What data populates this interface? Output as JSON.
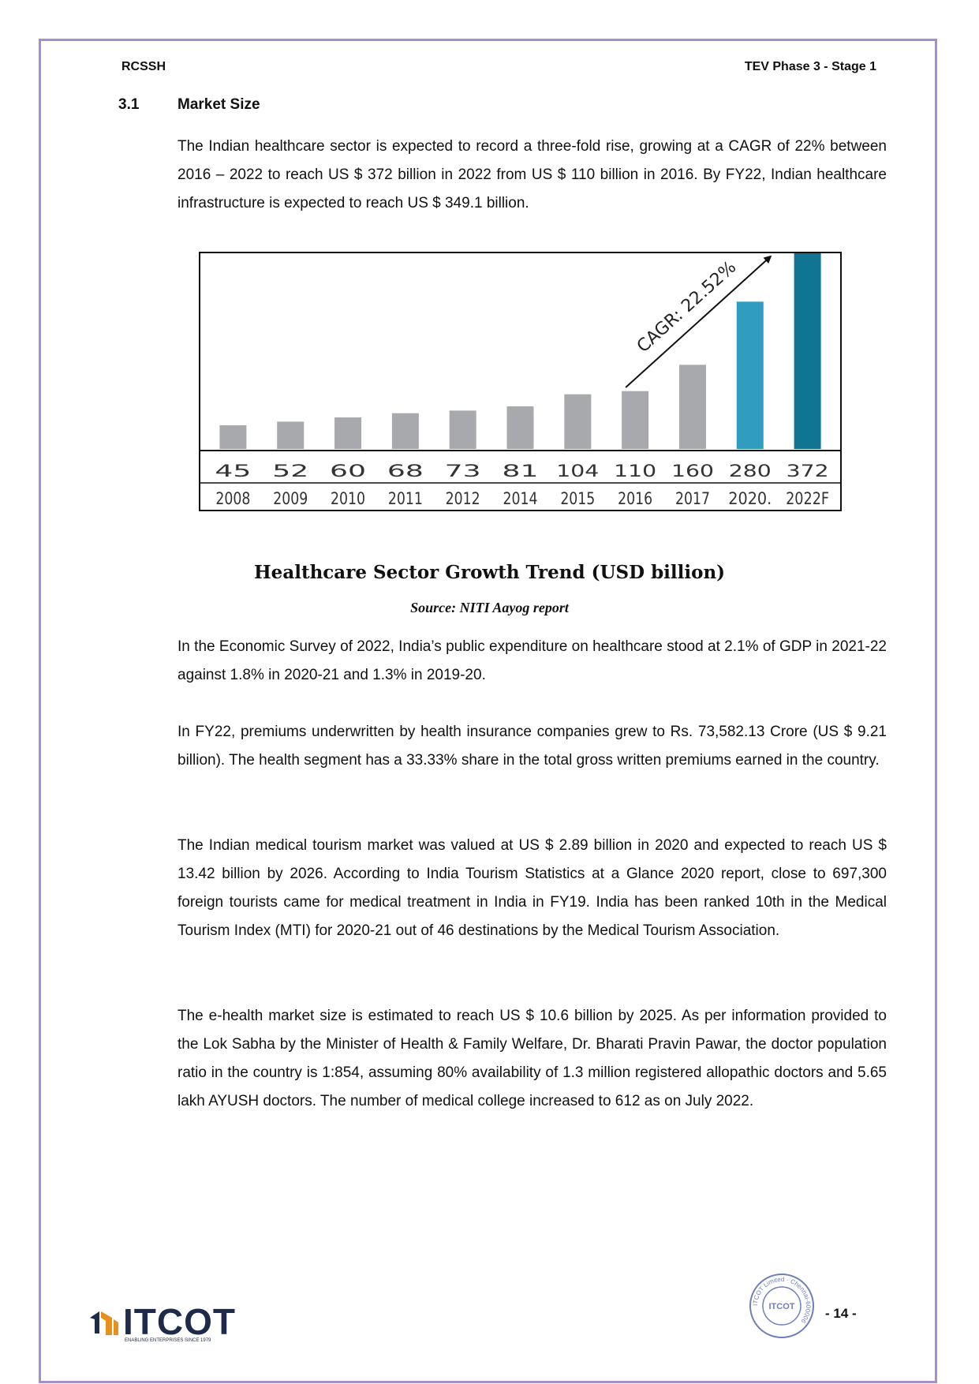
{
  "header": {
    "left": "RCSSH",
    "right": "TEV Phase 3 - Stage 1"
  },
  "section": {
    "number": "3.1",
    "title": "Market Size"
  },
  "paragraphs": {
    "intro": "The Indian healthcare sector is expected to record a three-fold rise, growing at a CAGR of 22% between 2016 – 2022 to reach US $ 372 billion in 2022 from US $ 110 billion in 2016. By FY22, Indian healthcare infrastructure is expected to reach US $ 349.1 billion.",
    "survey": "In the Economic Survey of 2022, India’s public expenditure on healthcare stood at 2.1% of GDP in 2021-22 against 1.8% in 2020-21 and 1.3% in 2019-20.",
    "insurance": "In FY22, premiums underwritten by health insurance companies grew to Rs. 73,582.13 Crore (US $ 9.21 billion). The health segment has a 33.33% share in the total gross written premiums earned in the country.",
    "tourism": "The Indian medical tourism market was valued at US $ 2.89 billion in 2020 and expected to reach US $ 13.42 billion by 2026. According to India Tourism Statistics at a Glance 2020 report, close to 697,300 foreign tourists came for medical treatment in India in FY19. India has been ranked 10th in the Medical Tourism Index (MTI) for 2020-21 out of 46 destinations by the Medical Tourism Association.",
    "ehealth": "The e-health market size is estimated to reach US $ 10.6 billion by 2025. As per information provided to the Lok Sabha by the Minister of Health & Family Welfare, Dr. Bharati Pravin Pawar, the doctor population ratio in the country is 1:854, assuming 80% availability of 1.3 million registered allopathic doctors and 5.65 lakh AYUSH doctors. The number of medical college increased to 612 as on July 2022."
  },
  "chart_caption": {
    "title": "Healthcare Sector Growth Trend (USD billion)",
    "source": "Source: NITI Aayog report"
  },
  "chart_data": {
    "type": "bar",
    "categories": [
      "2008",
      "2009",
      "2010",
      "2011",
      "2012",
      "2014",
      "2015",
      "2016",
      "2017",
      "2020.",
      "2022F"
    ],
    "values": [
      45,
      52,
      60,
      68,
      73,
      81,
      104,
      110,
      160,
      280,
      372
    ],
    "value_labels": [
      "45",
      "52",
      "60",
      "68",
      "73",
      "81",
      "104",
      "110",
      "160",
      "280",
      "372"
    ],
    "annotation": "CAGR: 22.52%",
    "ylim": [
      0,
      372
    ],
    "colors": {
      "gray": "#a7a9ad",
      "light_blue": "#2f9cc0",
      "dark_blue": "#0f7592"
    },
    "bar_color_keys": [
      "gray",
      "gray",
      "gray",
      "gray",
      "gray",
      "gray",
      "gray",
      "gray",
      "gray",
      "light_blue",
      "dark_blue"
    ]
  },
  "footer": {
    "logo_text": "ITCOT",
    "logo_tagline": "ENABLING ENTERPRISES SINCE 1979",
    "seal_ring_text": "ITCOT Limited · Chennai-600006",
    "seal_center": "ITCOT",
    "page_number": "- 14 -"
  }
}
